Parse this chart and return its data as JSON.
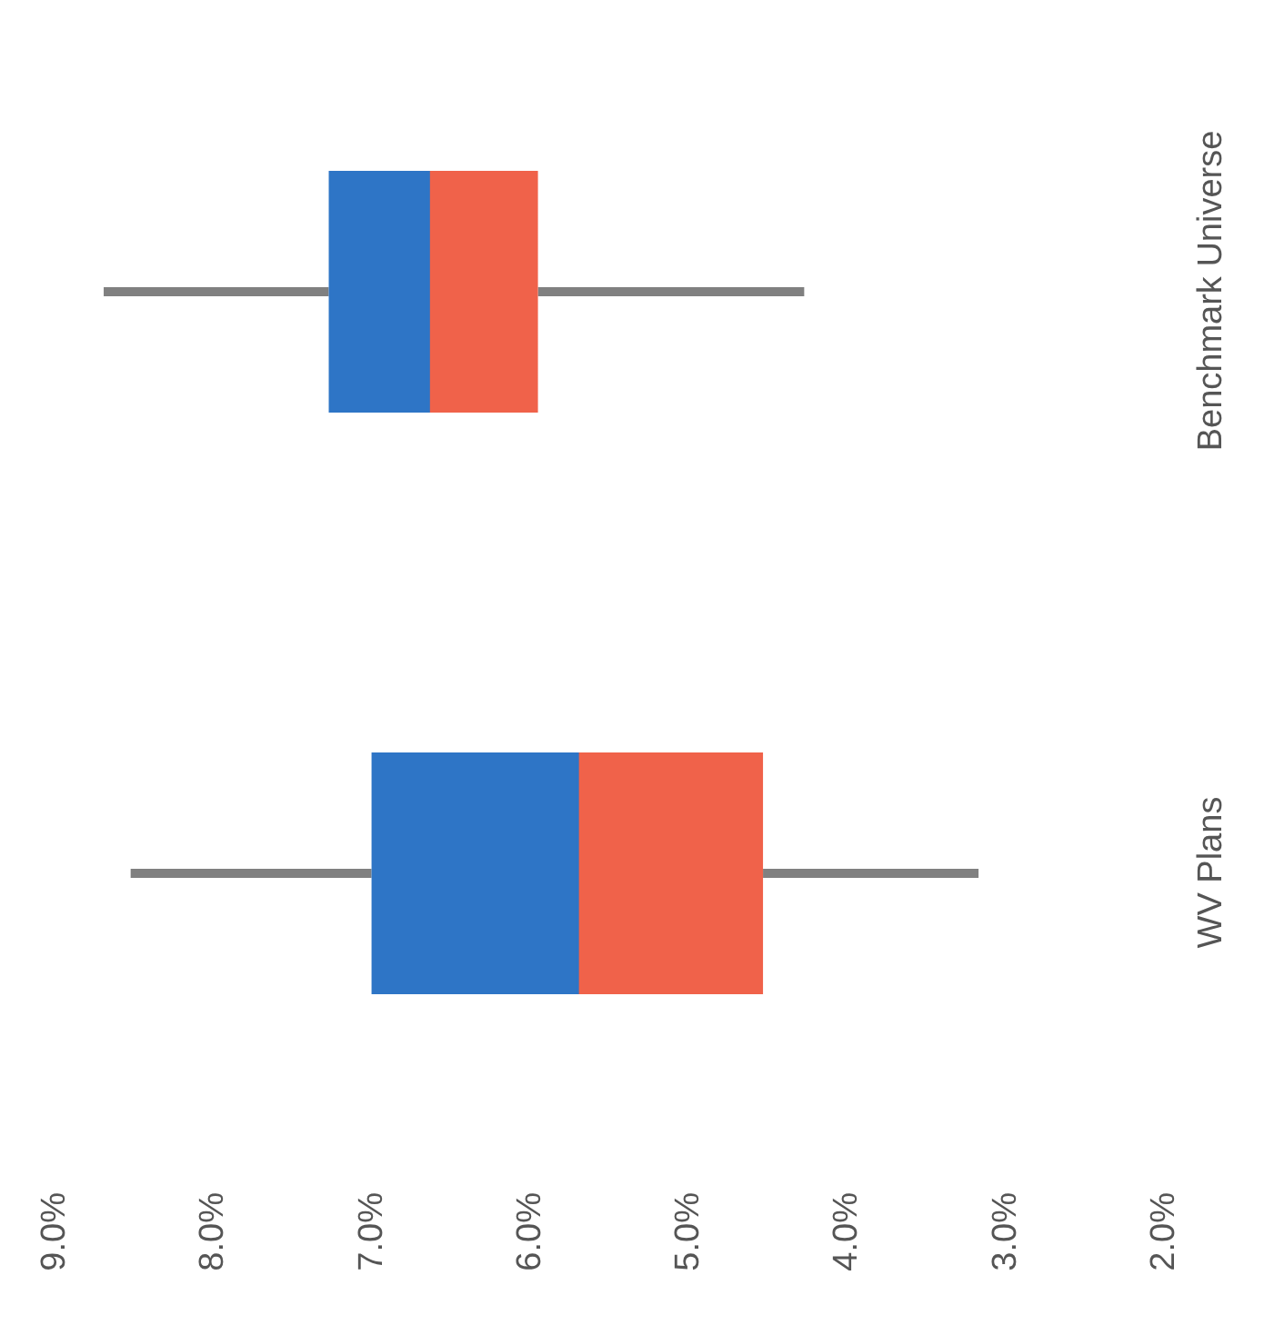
{
  "chart_data": {
    "type": "box",
    "orientation": "horizontal",
    "categories": [
      "Benchmark Universe",
      "WV Plans"
    ],
    "boxes": [
      {
        "low": 4.27,
        "q1": 5.95,
        "median": 6.64,
        "q3": 7.27,
        "high": 8.69
      },
      {
        "low": 3.17,
        "q1": 4.53,
        "median": 5.7,
        "q3": 7.0,
        "high": 8.52
      }
    ],
    "colors": [
      "#2e75c6",
      "#f0624a"
    ],
    "xlim": [
      9,
      2
    ],
    "xticks": [
      {
        "value": 9,
        "label": "9.0%"
      },
      {
        "value": 8,
        "label": "8.0%"
      },
      {
        "value": 7,
        "label": "7.0%"
      },
      {
        "value": 6,
        "label": "6.0%"
      },
      {
        "value": 5,
        "label": "5.0%"
      },
      {
        "value": 4,
        "label": "4.0%"
      },
      {
        "value": 3,
        "label": "3.0%"
      },
      {
        "value": 2,
        "label": "2.0%"
      }
    ]
  }
}
